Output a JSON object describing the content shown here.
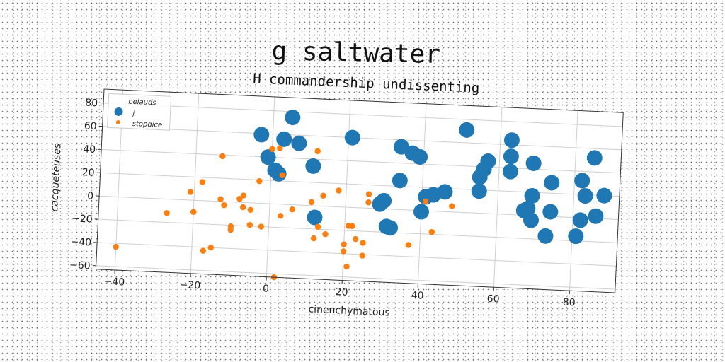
{
  "suptitle": "g saltwater",
  "chart_data": {
    "type": "scatter",
    "title": "H commandership undissenting",
    "xlabel": "cinenchymatous",
    "ylabel": "cacqueteuses",
    "xlim": [
      -45,
      92
    ],
    "ylim": [
      -63,
      92
    ],
    "xticks": [
      -40,
      -20,
      0,
      20,
      40,
      60,
      80
    ],
    "yticks": [
      -60,
      -40,
      -20,
      0,
      20,
      40,
      60,
      80
    ],
    "grid": true,
    "legend": {
      "title": "belauds",
      "placement": "top-left"
    },
    "series": [
      {
        "name": "j",
        "color": "#1f77b4",
        "points": [
          [
            5,
            75
          ],
          [
            -3,
            59
          ],
          [
            3,
            56
          ],
          [
            7,
            53
          ],
          [
            -1,
            40
          ],
          [
            1,
            29
          ],
          [
            2,
            26
          ],
          [
            11,
            34
          ],
          [
            12,
            -10
          ],
          [
            21,
            60
          ],
          [
            30,
            7
          ],
          [
            29,
            4
          ],
          [
            32,
            -16
          ],
          [
            31,
            -15
          ],
          [
            34,
            25
          ],
          [
            34,
            54
          ],
          [
            37,
            49
          ],
          [
            39,
            46
          ],
          [
            40,
            -1
          ],
          [
            41,
            12
          ],
          [
            43,
            14
          ],
          [
            46,
            17
          ],
          [
            51,
            71
          ],
          [
            55,
            19
          ],
          [
            55,
            31
          ],
          [
            56,
            38
          ],
          [
            57,
            45
          ],
          [
            63,
            64
          ],
          [
            63,
            50
          ],
          [
            63,
            37
          ],
          [
            69,
            45
          ],
          [
            69,
            17
          ],
          [
            68,
            6
          ],
          [
            67,
            4
          ],
          [
            69,
            -4
          ],
          [
            74,
            29
          ],
          [
            74,
            4
          ],
          [
            73,
            -17
          ],
          [
            81,
            -16
          ],
          [
            82,
            32
          ],
          [
            83,
            19
          ],
          [
            82,
            -2
          ],
          [
            85,
            52
          ],
          [
            86,
            2
          ],
          [
            88,
            20
          ]
        ]
      },
      {
        "name": "stopdice",
        "color": "#ff7f0e",
        "points": [
          [
            -40,
            -43
          ],
          [
            -27,
            -12
          ],
          [
            -21,
            7
          ],
          [
            -20,
            -10
          ],
          [
            -18,
            16
          ],
          [
            -17,
            -43
          ],
          [
            -15,
            -40
          ],
          [
            -13,
            39
          ],
          [
            -13,
            2
          ],
          [
            -12,
            -3
          ],
          [
            -10,
            -21
          ],
          [
            -10,
            -24
          ],
          [
            -8,
            3
          ],
          [
            -7,
            6
          ],
          [
            -7,
            -4
          ],
          [
            -5,
            -6
          ],
          [
            -5,
            -19
          ],
          [
            -3,
            19
          ],
          [
            -2,
            -20
          ],
          [
            0,
            47
          ],
          [
            2,
            48
          ],
          [
            3,
            25
          ],
          [
            3,
            -10
          ],
          [
            2,
            -63
          ],
          [
            6,
            -4
          ],
          [
            11,
            3
          ],
          [
            12,
            47
          ],
          [
            12,
            -28
          ],
          [
            13,
            -18
          ],
          [
            14,
            9
          ],
          [
            15,
            -24
          ],
          [
            18,
            14
          ],
          [
            20,
            -32
          ],
          [
            21,
            -16
          ],
          [
            22,
            -16
          ],
          [
            20,
            -38
          ],
          [
            21,
            -51
          ],
          [
            23,
            -27
          ],
          [
            25,
            -41
          ],
          [
            26,
            12
          ],
          [
            26,
            5
          ],
          [
            25,
            -30
          ],
          [
            37,
            -30
          ],
          [
            41,
            8
          ],
          [
            43,
            -18
          ],
          [
            48,
            5
          ]
        ]
      }
    ]
  }
}
